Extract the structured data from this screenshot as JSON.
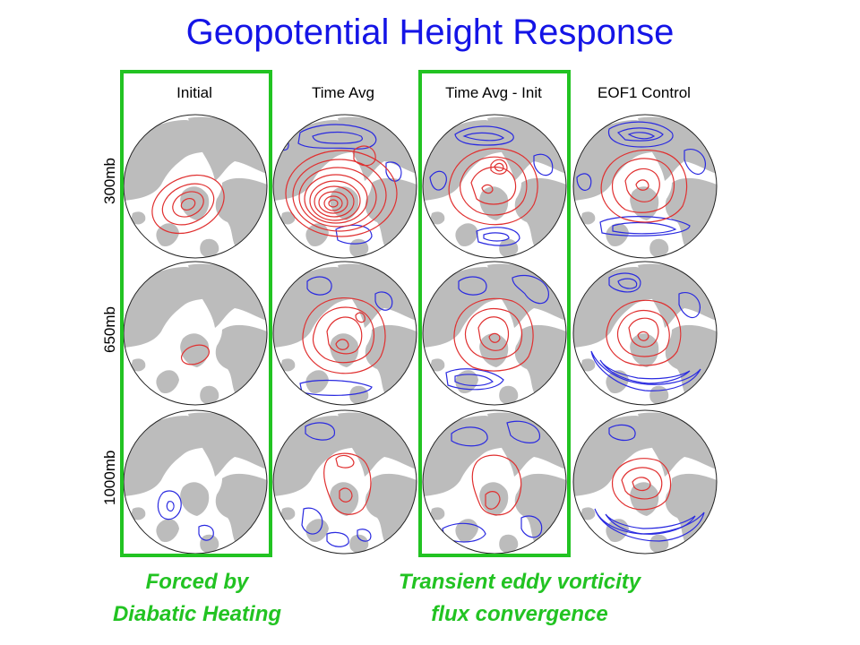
{
  "title": "Geopotential Height Response",
  "columns": [
    "Initial",
    "Time Avg",
    "Time Avg - Init",
    "EOF1 Control"
  ],
  "rows": [
    "300mb",
    "650mb",
    "1000mb"
  ],
  "captions": {
    "left_line1": "Forced by",
    "left_line2": "Diabatic Heating",
    "right_line1": "Transient eddy vorticity",
    "right_line2": "flux convergence"
  },
  "colors": {
    "title": "#1414e6",
    "highlight_box": "#22c322",
    "positive_contour": "#e03030",
    "negative_contour": "#2a2ae0",
    "land": "#bcbcbc",
    "ocean": "#ffffff"
  },
  "highlighted_columns": [
    "Initial",
    "Time Avg - Init"
  ]
}
